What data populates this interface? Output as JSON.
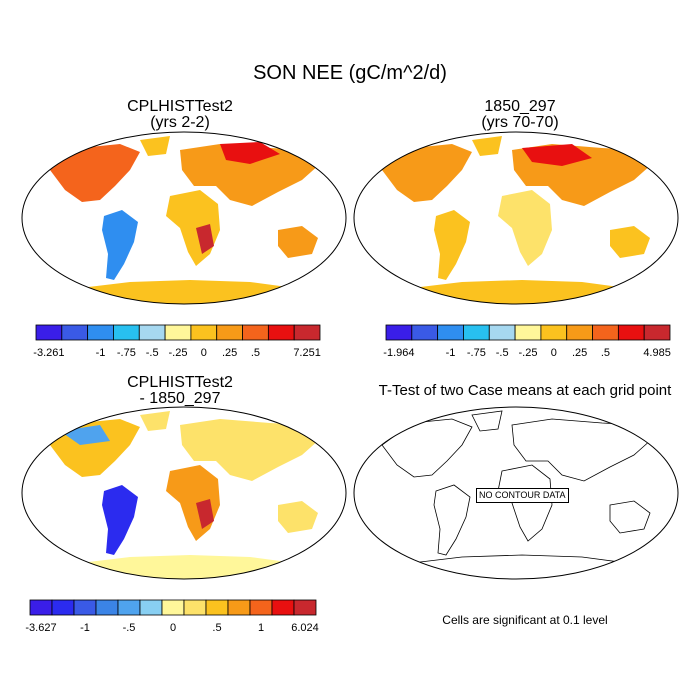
{
  "main_title": "SON NEE (gC/m^2/d)",
  "panels": [
    {
      "title_line1": "CPLHISTTest2",
      "title_line2": "(yrs 2-2)"
    },
    {
      "title_line1": "1850_297",
      "title_line2": "(yrs 70-70)"
    },
    {
      "title_line1": "CPLHISTTest2",
      "title_line2": "- 1850_297"
    },
    {
      "title_line1": "T-Test of two Case means at each grid point"
    }
  ],
  "no_contour_label": "NO CONTOUR DATA",
  "significance_note": "Cells are significant at 0.1 level",
  "colorbars": [
    {
      "colors": [
        "#3a1ee8",
        "#3a5ae6",
        "#2f8ef0",
        "#28c0f0",
        "#a6d8f0",
        "#fff79a",
        "#fbc21f",
        "#f79a18",
        "#f4641c",
        "#e81010",
        "#c8282e"
      ],
      "labels": [
        "-3.261",
        "",
        "-1",
        "-.75",
        "-.5",
        "-.25",
        "0",
        ".25",
        ".5",
        "",
        "7.251"
      ]
    },
    {
      "colors": [
        "#3a1ee8",
        "#3a5ae6",
        "#2f8ef0",
        "#28c0f0",
        "#a6d8f0",
        "#fff79a",
        "#fbc21f",
        "#f79a18",
        "#f4641c",
        "#e81010",
        "#c8282e"
      ],
      "labels": [
        "-1.964",
        "",
        "-1",
        "-.75",
        "-.5",
        "-.25",
        "0",
        ".25",
        ".5",
        "",
        "4.985"
      ]
    },
    {
      "colors": [
        "#3a1ee8",
        "#2b2bef",
        "#3a5ae6",
        "#3b84e6",
        "#4fa3ee",
        "#88cff2",
        "#fff79a",
        "#fde26a",
        "#fbc21f",
        "#f79a18",
        "#f4641c",
        "#e81010",
        "#c8282e"
      ],
      "labels": [
        "-3.627",
        "",
        "-1",
        "",
        "-.5",
        "",
        "0",
        "",
        ".5",
        "",
        "1",
        "",
        "6.024"
      ]
    }
  ]
}
